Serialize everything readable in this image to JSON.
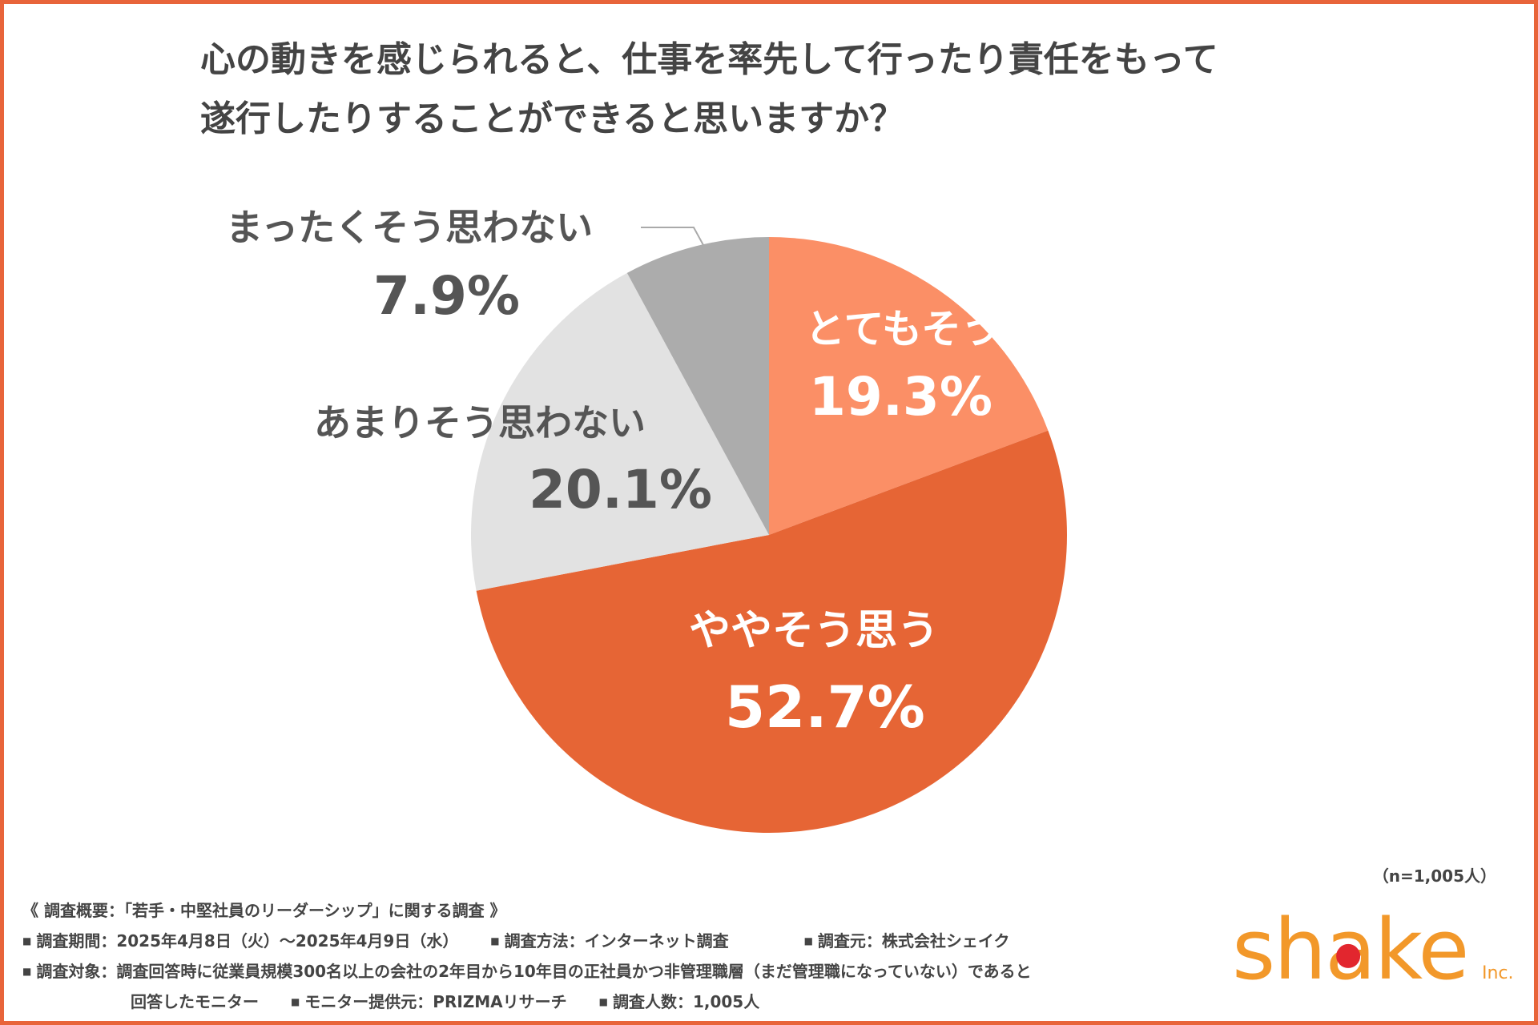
{
  "title_lines": [
    "心の動きを感じられると、仕事を率先して行ったり責任をもって",
    "遂行したりすることができると思いますか？"
  ],
  "chart_data": {
    "type": "pie",
    "title": "心の動きを感じられると、仕事を率先して行ったり責任をもって遂行したりすることができると思いますか？",
    "start": "12 o'clock",
    "direction": "clockwise",
    "slices": [
      {
        "label": "とてもそう思う",
        "value": 19.3,
        "value_label": "19.3%",
        "color": "#fb8f66",
        "text_color": "#ffffff"
      },
      {
        "label": "ややそう思う",
        "value": 52.7,
        "value_label": "52.7%",
        "color": "#e66535",
        "text_color": "#ffffff"
      },
      {
        "label": "あまりそう思わない",
        "value": 20.1,
        "value_label": "20.1%",
        "color": "#e2e2e2",
        "text_color": "#555555"
      },
      {
        "label": "まったくそう思わない",
        "value": 7.9,
        "value_label": "7.9%",
        "color": "#acacac",
        "text_color": "#555555"
      }
    ]
  },
  "sample_note": "（n=1,005人）",
  "footer": {
    "summary": "《 調査概要：「若手・中堅社員のリーダーシップ」に関する調査 》",
    "bullet": "■",
    "period": "調査期間：2025年4月8日（火）～2025年4月9日（水）",
    "method": "調査方法：インターネット調査",
    "organizer": "調査元：株式会社シェイク",
    "target": "調査対象：調査回答時に従業員規模300名以上の会社の2年目から10年目の正社員かつ非管理職層（まだ管理職になっていない）であると",
    "target_cont": "回答したモニター",
    "provider": "モニター提供元：PRIZMAリサーチ",
    "count": "調査人数：1,005人"
  },
  "logo": {
    "text": "shake",
    "suffix": "Inc.",
    "color": "#f2982a",
    "dot_color": "#e2262e"
  }
}
